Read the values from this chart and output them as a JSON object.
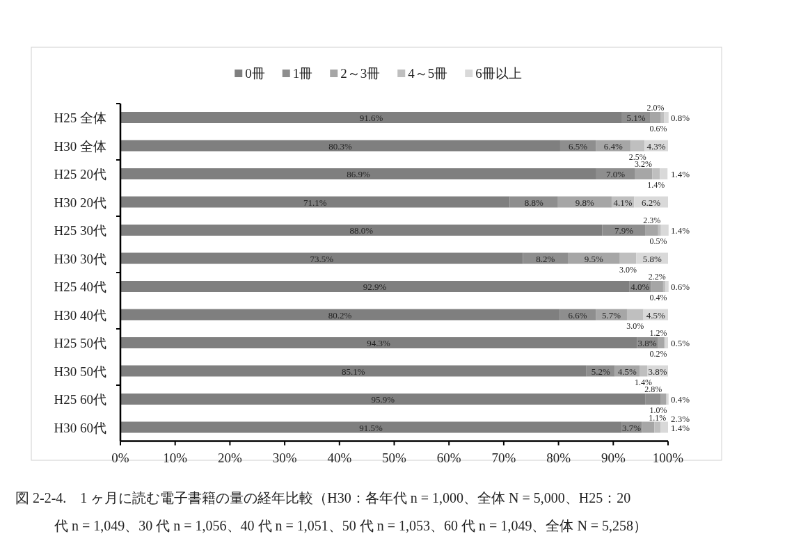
{
  "chart_data": {
    "type": "bar",
    "orientation": "horizontal",
    "stacked": true,
    "legend": "top",
    "categories": [
      "H25 全体",
      "H30 全体",
      "H25 20代",
      "H30 20代",
      "H25 30代",
      "H30 30代",
      "H25 40代",
      "H30 40代",
      "H25 50代",
      "H30 50代",
      "H25 60代",
      "H30 60代"
    ],
    "series": [
      {
        "name": "0冊",
        "color": "#7f7f7f",
        "values": [
          91.6,
          80.3,
          86.9,
          71.1,
          88.0,
          73.5,
          92.9,
          80.2,
          94.3,
          85.1,
          95.9,
          91.5
        ],
        "value_labels": [
          "91.6%",
          "80.3%",
          "86.9%",
          "71.1%",
          "88.0%",
          "73.5%",
          "92.9%",
          "80.2%",
          "94.3%",
          "85.1%",
          "95.9%",
          "91.5%"
        ]
      },
      {
        "name": "1冊",
        "color": "#8e8e8e",
        "values": [
          5.1,
          6.5,
          7.0,
          8.8,
          7.9,
          8.2,
          4.0,
          6.6,
          3.8,
          5.2,
          2.8,
          3.7
        ],
        "value_labels": [
          "5.1%",
          "6.5%",
          "7.0%",
          "8.8%",
          "7.9%",
          "8.2%",
          "4.0%",
          "6.6%",
          "3.8%",
          "5.2%",
          "2.8%",
          "3.7%"
        ]
      },
      {
        "name": "2～3冊",
        "color": "#a6a6a6",
        "values": [
          2.0,
          6.4,
          3.2,
          9.8,
          2.3,
          9.5,
          2.2,
          5.7,
          1.2,
          4.5,
          1.0,
          2.3
        ],
        "value_labels": [
          "2.0%",
          "6.4%",
          "3.2%",
          "9.8%",
          "2.3%",
          "9.5%",
          "2.2%",
          "5.7%",
          "1.2%",
          "4.5%",
          "1.0%",
          "2.3%"
        ]
      },
      {
        "name": "4～5冊",
        "color": "#bfbfbf",
        "values": [
          0.6,
          2.5,
          1.4,
          4.1,
          0.5,
          3.0,
          0.4,
          3.0,
          0.2,
          1.4,
          null,
          1.1
        ],
        "value_labels": [
          "0.6%",
          "2.5%",
          "1.4%",
          "4.1%",
          "0.5%",
          "3.0%",
          "0.4%",
          "3.0%",
          "0.2%",
          "1.4%",
          null,
          "1.1%"
        ]
      },
      {
        "name": "6冊以上",
        "color": "#d9d9d9",
        "values": [
          0.8,
          4.3,
          1.4,
          6.2,
          1.4,
          5.8,
          0.6,
          4.5,
          0.5,
          3.8,
          0.4,
          1.4
        ],
        "value_labels": [
          "0.8%",
          "4.3%",
          "1.4%",
          "6.2%",
          "1.4%",
          "5.8%",
          "0.6%",
          "4.5%",
          "0.5%",
          "3.8%",
          "0.4%",
          "1.4%"
        ]
      }
    ],
    "xlim": [
      0,
      100
    ],
    "xticks": [
      {
        "value": 0,
        "label": "0%"
      },
      {
        "value": 10,
        "label": "10%"
      },
      {
        "value": 20,
        "label": "20%"
      },
      {
        "value": 30,
        "label": "30%"
      },
      {
        "value": 40,
        "label": "40%"
      },
      {
        "value": 50,
        "label": "50%"
      },
      {
        "value": 60,
        "label": "60%"
      },
      {
        "value": 70,
        "label": "70%"
      },
      {
        "value": 80,
        "label": "80%"
      },
      {
        "value": 90,
        "label": "90%"
      },
      {
        "value": 100,
        "label": "100%"
      }
    ],
    "annotations": [
      "図 2-2-4.　1 ヶ月に読む電子書籍の量の経年比較（H30：各年代 n = 1,000、全体 N = 5,000、H25：20",
      "代 n = 1,049、30 代 n = 1,056、40 代 n = 1,051、50 代 n = 1,053、60 代 n = 1,049、全体 N = 5,258）"
    ]
  }
}
